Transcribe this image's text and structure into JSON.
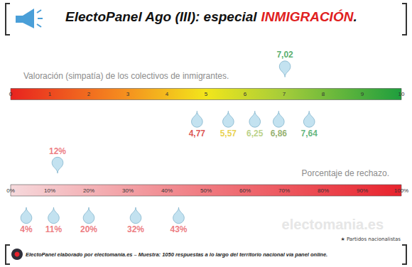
{
  "title": "ElectoPanel Ago (III): especial INMIGRACIÓN.",
  "chart_data": [
    {
      "type": "scatter",
      "title": "Valoración (simpatía) de los colectivos de inmigrantes.",
      "values": [
        4.77,
        5.57,
        6.25,
        6.86,
        7.02,
        7.64
      ],
      "value_labels": [
        "4,77",
        "5,57",
        "6,25",
        "6,86",
        "7,02",
        "7,64"
      ],
      "colors": [
        "#d42a2a",
        "#e3c622",
        "#a9c66b",
        "#7a9d4a",
        "#2e9a48",
        "#3aa35a"
      ],
      "xlim": [
        0,
        10
      ],
      "xticks": [
        0,
        1,
        2,
        3,
        4,
        5,
        6,
        7,
        8,
        9,
        10
      ],
      "data_labels": true
    },
    {
      "type": "scatter",
      "title": "Porcentaje de rechazo.",
      "values": [
        4,
        11,
        12,
        20,
        32,
        43
      ],
      "value_labels": [
        "4%",
        "11%",
        "12%",
        "20%",
        "32%",
        "43%"
      ],
      "colors": [
        "#e8595f",
        "#e8595f",
        "#e8595f",
        "#e8595f",
        "#e8595f",
        "#e8595f"
      ],
      "xlim": [
        0,
        100
      ],
      "xticks": [
        {
          "value": 0,
          "label": "0%"
        },
        {
          "value": 10,
          "label": "10%"
        },
        {
          "value": 20,
          "label": "20%"
        },
        {
          "value": 30,
          "label": "30%"
        },
        {
          "value": 40,
          "label": "40%"
        },
        {
          "value": 50,
          "label": "50%"
        },
        {
          "value": 60,
          "label": "60%"
        },
        {
          "value": 70,
          "label": "70%"
        },
        {
          "value": 80,
          "label": "80%"
        },
        {
          "value": 90,
          "label": "90%"
        },
        {
          "value": 100,
          "label": "100%"
        }
      ],
      "data_labels": true
    }
  ],
  "note": "★ Partidos nacionalistas",
  "watermark": "electomania.es",
  "footer": "ElectoPanel elaborado por electomania.es – Muestra: 1050 respuestas a lo largo del territorio nacional vía panel online."
}
